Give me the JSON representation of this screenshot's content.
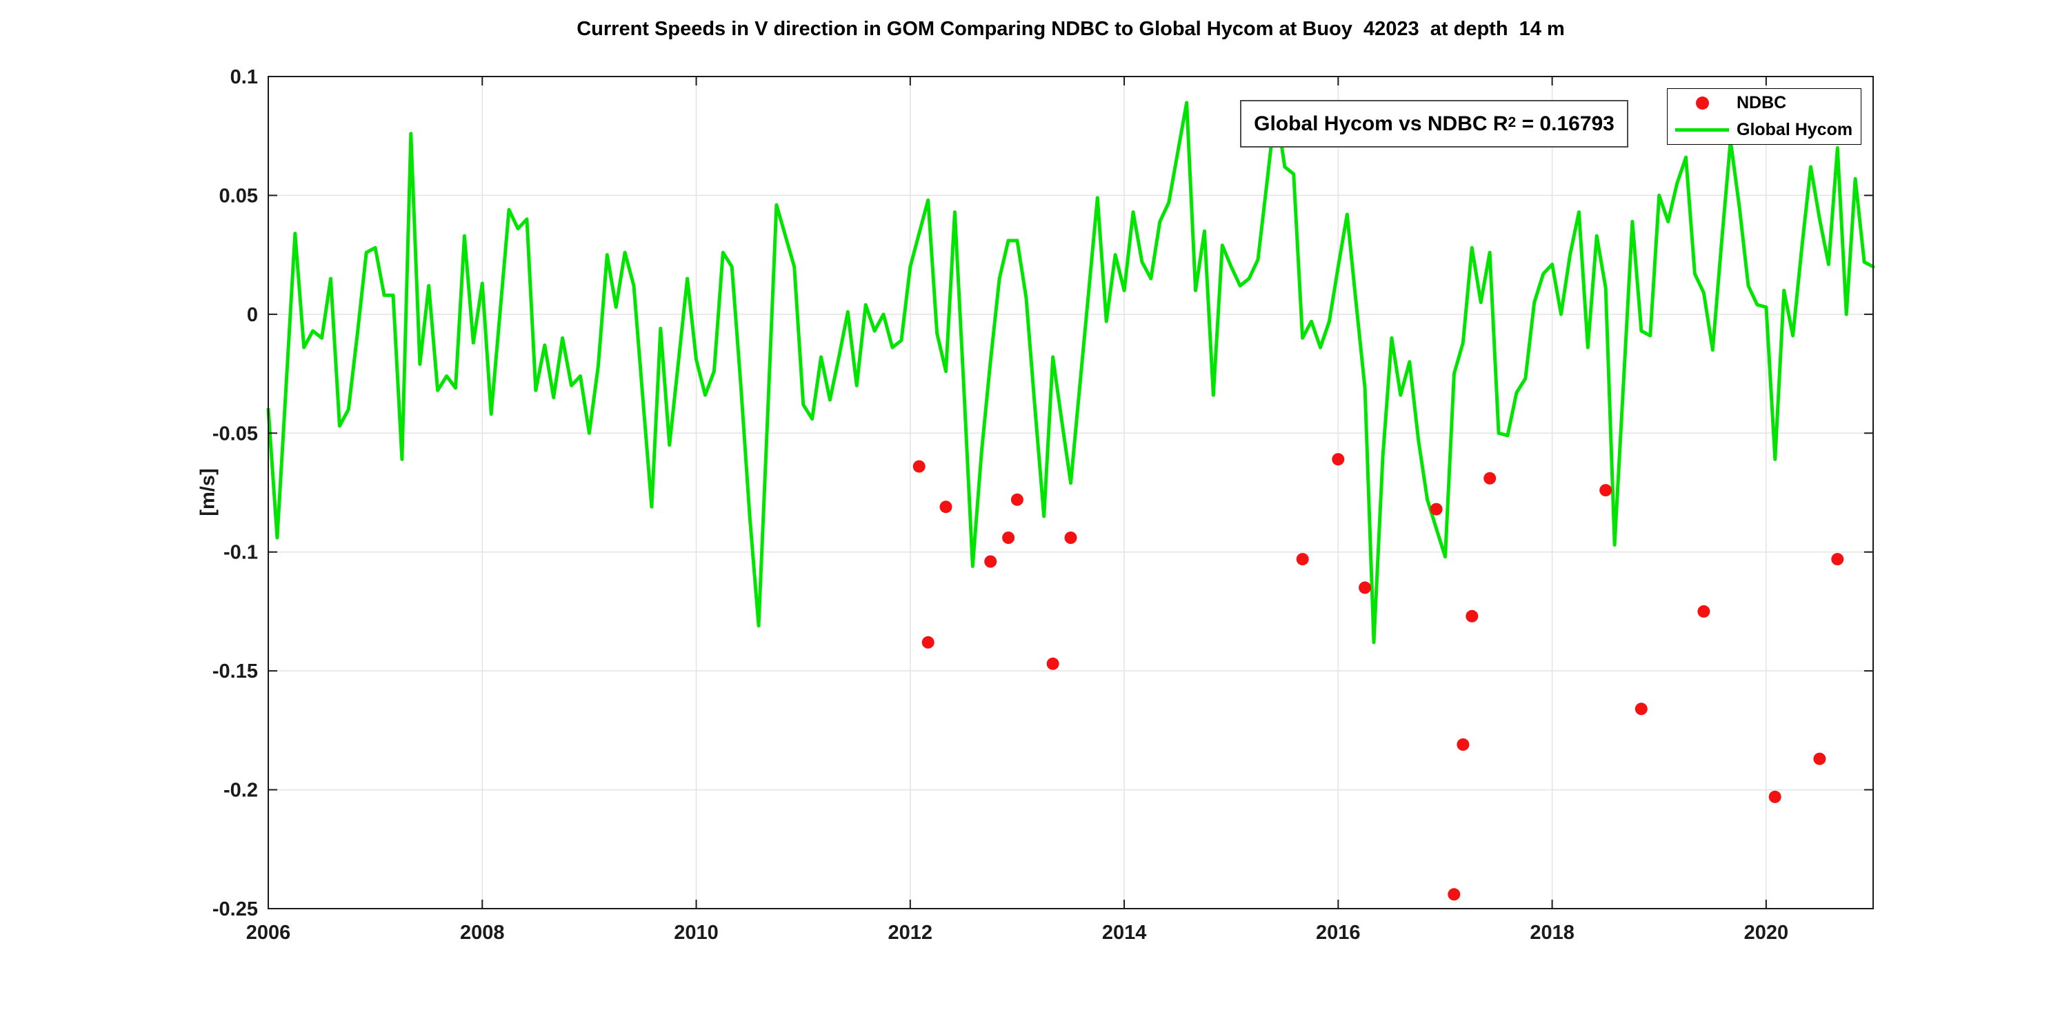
{
  "chart_data": {
    "type": "line",
    "title": "Current Speeds in V direction in GOM Comparing NDBC to Global Hycom at Buoy  42023  at depth  14 m",
    "xlabel": "",
    "ylabel": "[m/s]",
    "xlim": [
      2006,
      2021
    ],
    "ylim": [
      -0.25,
      0.1
    ],
    "grid": true,
    "xticks": [
      2006,
      2008,
      2010,
      2012,
      2014,
      2016,
      2018,
      2020
    ],
    "xtick_labels": [
      "2006",
      "2008",
      "2010",
      "2012",
      "2014",
      "2016",
      "2018",
      "2020"
    ],
    "yticks": [
      0.1,
      0.05,
      0,
      -0.05,
      -0.1,
      -0.15,
      -0.2,
      -0.25
    ],
    "ytick_labels": [
      "0.1",
      "0.05",
      "0",
      "-0.05",
      "-0.1",
      "-0.15",
      "-0.2",
      "-0.25"
    ],
    "annotation": {
      "prefix": "Global Hycom vs NDBC R",
      "sup": "2",
      "suffix": " = 0.16793"
    },
    "legend": {
      "position": "top-right",
      "items": [
        {
          "label": "NDBC",
          "marker": "dot",
          "color": "#f31111"
        },
        {
          "label": "Global Hycom",
          "marker": "line",
          "color": "#00e400"
        }
      ]
    },
    "series": [
      {
        "name": "Global Hycom",
        "kind": "line",
        "color": "#00e400",
        "x_start": 2006,
        "x_step_years": 0.0833333,
        "values": [
          -0.04,
          -0.094,
          -0.03,
          0.034,
          -0.014,
          -0.007,
          -0.01,
          0.015,
          -0.047,
          -0.04,
          -0.008,
          0.026,
          0.028,
          0.008,
          0.008,
          -0.061,
          0.076,
          -0.021,
          0.012,
          -0.032,
          -0.026,
          -0.031,
          0.033,
          -0.012,
          0.013,
          -0.042,
          0.001,
          0.044,
          0.036,
          0.04,
          -0.032,
          -0.013,
          -0.035,
          -0.01,
          -0.03,
          -0.026,
          -0.05,
          -0.022,
          0.025,
          0.003,
          0.026,
          0.012,
          -0.035,
          -0.081,
          -0.006,
          -0.055,
          -0.02,
          0.015,
          -0.019,
          -0.034,
          -0.024,
          0.026,
          0.02,
          -0.03,
          -0.085,
          -0.131,
          -0.043,
          0.046,
          0.033,
          0.02,
          -0.038,
          -0.044,
          -0.018,
          -0.036,
          -0.018,
          0.001,
          -0.03,
          0.004,
          -0.007,
          0.0,
          -0.014,
          -0.011,
          0.02,
          0.034,
          0.048,
          -0.008,
          -0.024,
          0.043,
          -0.03,
          -0.106,
          -0.058,
          -0.02,
          0.015,
          0.031,
          0.031,
          0.007,
          -0.04,
          -0.085,
          -0.018,
          -0.045,
          -0.071,
          -0.031,
          0.009,
          0.049,
          -0.003,
          0.025,
          0.01,
          0.043,
          0.022,
          0.015,
          0.039,
          0.047,
          0.068,
          0.089,
          0.01,
          0.035,
          -0.034,
          0.029,
          0.02,
          0.012,
          0.015,
          0.023,
          0.055,
          0.088,
          0.062,
          0.059,
          -0.01,
          -0.003,
          -0.014,
          -0.003,
          0.02,
          0.042,
          0.005,
          -0.031,
          -0.138,
          -0.06,
          -0.01,
          -0.034,
          -0.02,
          -0.053,
          -0.078,
          -0.09,
          -0.102,
          -0.025,
          -0.012,
          0.028,
          0.005,
          0.026,
          -0.05,
          -0.051,
          -0.033,
          -0.027,
          0.005,
          0.017,
          0.021,
          0.0,
          0.025,
          0.043,
          -0.014,
          0.033,
          0.011,
          -0.097,
          -0.029,
          0.039,
          -0.007,
          -0.009,
          0.05,
          0.039,
          0.055,
          0.066,
          0.017,
          0.009,
          -0.015,
          0.03,
          0.073,
          0.045,
          0.012,
          0.004,
          0.003,
          -0.061,
          0.01,
          -0.009,
          0.028,
          0.062,
          0.04,
          0.021,
          0.07,
          0.0,
          0.057,
          0.022,
          0.02
        ]
      },
      {
        "name": "NDBC",
        "kind": "scatter",
        "color": "#f31111",
        "points": [
          [
            2012.083,
            -0.064
          ],
          [
            2012.167,
            -0.138
          ],
          [
            2012.333,
            -0.081
          ],
          [
            2012.75,
            -0.104
          ],
          [
            2012.917,
            -0.094
          ],
          [
            2013.0,
            -0.078
          ],
          [
            2013.333,
            -0.147
          ],
          [
            2013.5,
            -0.094
          ],
          [
            2015.667,
            -0.103
          ],
          [
            2016.0,
            -0.061
          ],
          [
            2016.25,
            -0.115
          ],
          [
            2016.917,
            -0.082
          ],
          [
            2017.083,
            -0.244
          ],
          [
            2017.167,
            -0.181
          ],
          [
            2017.25,
            -0.127
          ],
          [
            2017.417,
            -0.069
          ],
          [
            2018.5,
            -0.074
          ],
          [
            2018.833,
            -0.166
          ],
          [
            2019.417,
            -0.125
          ],
          [
            2020.083,
            -0.203
          ],
          [
            2020.5,
            -0.187
          ],
          [
            2020.667,
            -0.103
          ]
        ]
      }
    ],
    "colors": {
      "line": "#00e400",
      "marker": "#f31111",
      "grid": "#e3e3e3",
      "axis": "#1a1a1a",
      "tick_text": "#1a1a1a"
    }
  }
}
